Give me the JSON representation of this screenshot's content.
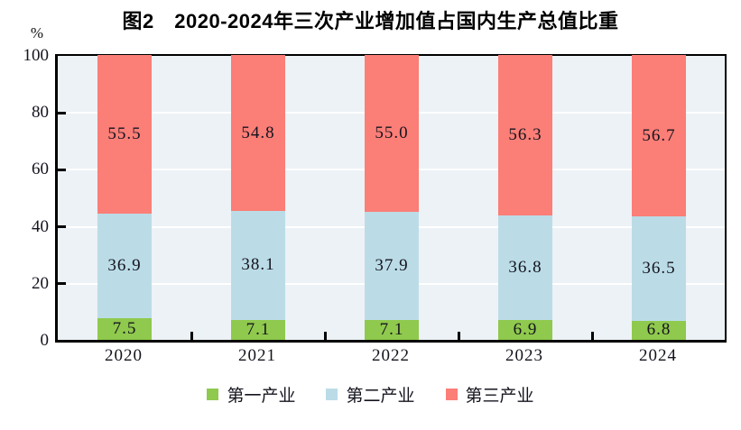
{
  "chart_data": {
    "type": "bar",
    "stacked": true,
    "title": "图2　2020-2024年三次产业增加值占国内生产总值比重",
    "unit_label": "%",
    "categories": [
      "2020",
      "2021",
      "2022",
      "2023",
      "2024"
    ],
    "series": [
      {
        "name": "第一产业",
        "color": "#8FC94D",
        "values": [
          7.5,
          7.1,
          7.1,
          6.9,
          6.8
        ]
      },
      {
        "name": "第二产业",
        "color": "#BBDCE7",
        "values": [
          36.9,
          38.1,
          37.9,
          36.8,
          36.5
        ]
      },
      {
        "name": "第三产业",
        "color": "#FB7E77",
        "values": [
          55.5,
          54.8,
          55.0,
          56.3,
          56.7
        ]
      }
    ],
    "ylim": [
      0,
      100
    ],
    "yticks": [
      0,
      20,
      40,
      60,
      80,
      100
    ],
    "grid": true,
    "grid_color": "#FFFFFF",
    "plot_background": "#ECF2F6",
    "axis_color": "#000000",
    "legend_position": "bottom"
  }
}
